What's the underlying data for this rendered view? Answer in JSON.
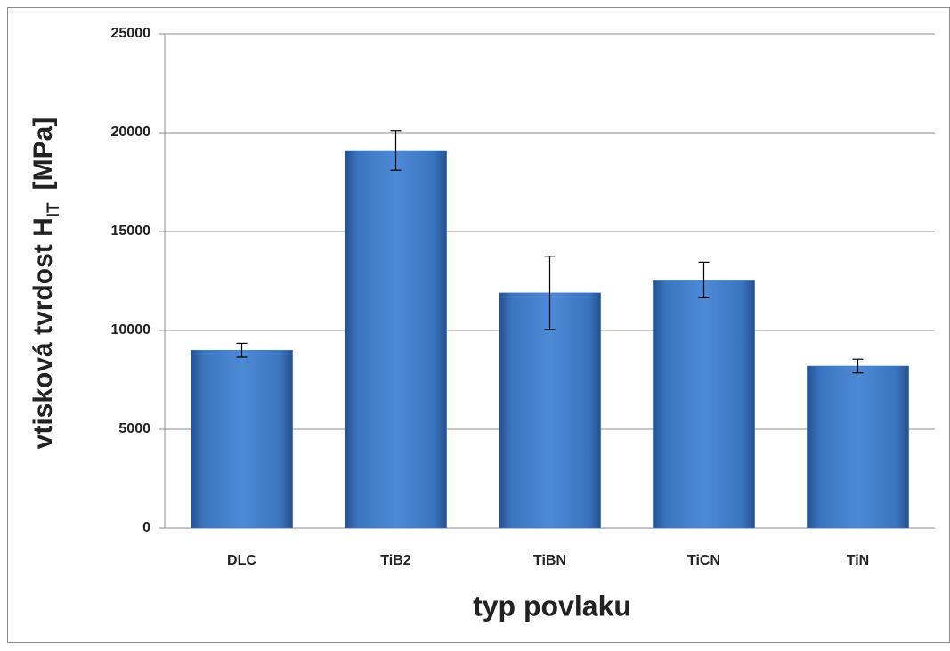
{
  "chart_data": {
    "type": "bar",
    "y_label": "vtisková tvrdost H",
    "y_label_subscript": "IT",
    "y_label_unit": "[MPa]",
    "x_label": "typ povlaku",
    "categories": [
      "DLC",
      "TiB2",
      "TiBN",
      "TiCN",
      "TiN"
    ],
    "values": [
      9000,
      19100,
      11900,
      12550,
      8200
    ],
    "errors": [
      350,
      1000,
      1850,
      900,
      350
    ],
    "color": "#3f7bc4",
    "ylim": [
      0,
      25000
    ],
    "yticks": [
      0,
      5000,
      10000,
      15000,
      20000,
      25000
    ],
    "grid": true
  }
}
